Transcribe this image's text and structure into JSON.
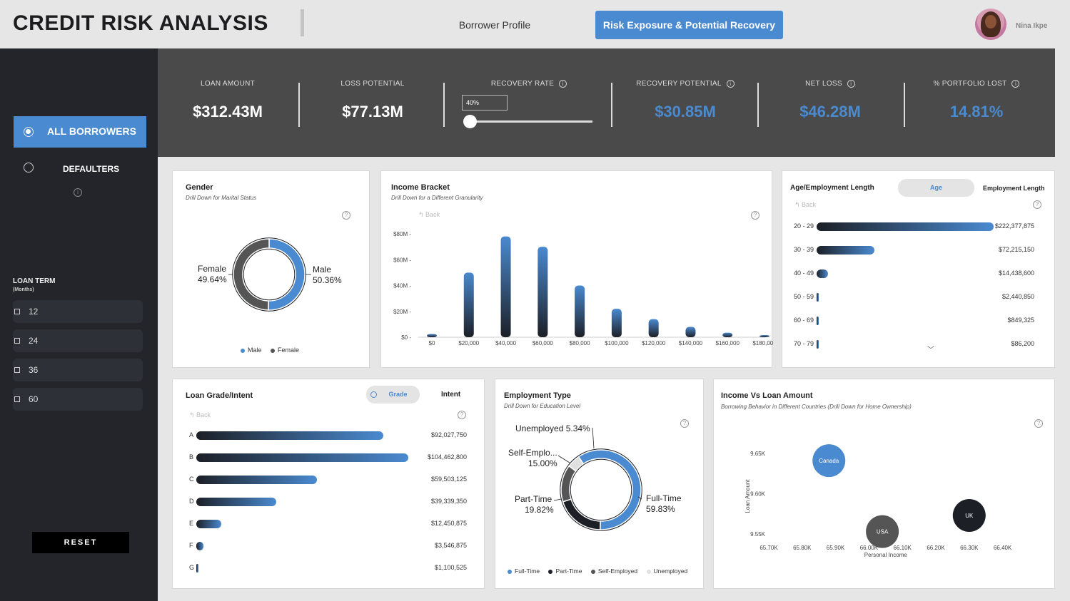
{
  "header": {
    "title": "CREDIT RISK ANALYSIS",
    "tabs": [
      "Borrower Profile",
      "Risk Exposure & Potential Recovery"
    ],
    "user_name": "Nina Ikpe"
  },
  "sidebar": {
    "borrower_filter": [
      "ALL BORROWERS",
      "DEFAULTERS"
    ],
    "loan_term_title": "LOAN TERM",
    "loan_term_sub": "(Months)",
    "terms": [
      "12",
      "24",
      "36",
      "60"
    ],
    "reset_label": "RESET"
  },
  "kpis": {
    "loan_amount": {
      "label": "LOAN AMOUNT",
      "value": "$312.43M"
    },
    "loss_potential": {
      "label": "LOSS POTENTIAL",
      "value": "$77.13M"
    },
    "recovery_rate": {
      "label": "RECOVERY RATE",
      "value": "40%",
      "slider_fraction": 0.0
    },
    "recovery_potential": {
      "label": "RECOVERY POTENTIAL",
      "value": "$30.85M"
    },
    "net_loss": {
      "label": "NET LOSS",
      "value": "$46.28M"
    },
    "portfolio_lost": {
      "label": "% PORTFOLIO LOST",
      "value": "14.81%"
    }
  },
  "colors": {
    "accent": "#4a8ad0",
    "dark": "#1c1f26",
    "panel": "#4a4a4a",
    "sidebar": "#23252b"
  },
  "gender": {
    "title": "Gender",
    "subtitle": "Drill Down for Marital Status",
    "male_label": "Male",
    "male_pct": "50.36%",
    "female_label": "Female",
    "female_pct": "49.64%",
    "legend": [
      "Male",
      "Female"
    ]
  },
  "income": {
    "title": "Income Bracket",
    "subtitle": "Drill Down for a Different Granularity",
    "back_label": "Back"
  },
  "age": {
    "title": "Age/Employment Length",
    "toggle": [
      "Age",
      "Employment Length"
    ],
    "back_label": "Back",
    "rows": [
      {
        "label": "20 - 29",
        "value": "$222,377,875"
      },
      {
        "label": "30 - 39",
        "value": "$72,215,150"
      },
      {
        "label": "40 - 49",
        "value": "$14,438,600"
      },
      {
        "label": "50 - 59",
        "value": "$2,440,850"
      },
      {
        "label": "60 - 69",
        "value": "$849,325"
      },
      {
        "label": "70 - 79",
        "value": "$86,200"
      }
    ]
  },
  "grade": {
    "title": "Loan Grade/Intent",
    "toggle": [
      "Grade",
      "Intent"
    ],
    "back_label": "Back",
    "rows": [
      {
        "label": "A",
        "value": "$92,027,750"
      },
      {
        "label": "B",
        "value": "$104,462,800"
      },
      {
        "label": "C",
        "value": "$59,503,125"
      },
      {
        "label": "D",
        "value": "$39,339,350"
      },
      {
        "label": "E",
        "value": "$12,450,875"
      },
      {
        "label": "F",
        "value": "$3,546,875"
      },
      {
        "label": "G",
        "value": "$1,100,525"
      }
    ]
  },
  "employment": {
    "title": "Employment Type",
    "subtitle": "Drill Down for Education Level",
    "labels": {
      "unemployed": "Unemployed 5.34%",
      "self_name": "Self-Emplo...",
      "self_pct": "15.00%",
      "part_name": "Part-Time",
      "part_pct": "19.82%",
      "full_name": "Full-Time",
      "full_pct": "59.83%"
    },
    "legend": [
      "Full-Time",
      "Part-Time",
      "Self-Employed",
      "Unemployed"
    ]
  },
  "scatter": {
    "title": "Income Vs Loan Amount",
    "subtitle": "Borrowing Behavior in Different Countries (Drill Down for Home Ownership)"
  },
  "chart_data": [
    {
      "type": "pie",
      "title": "Gender",
      "categories": [
        "Male",
        "Female"
      ],
      "values": [
        50.36,
        49.64
      ],
      "colors": [
        "#4a8ad0",
        "#555555"
      ]
    },
    {
      "type": "bar",
      "title": "Income Bracket",
      "categories": [
        "$0",
        "$20,000",
        "$40,000",
        "$60,000",
        "$80,000",
        "$100,000",
        "$120,000",
        "$140,000",
        "$160,000",
        "$180,000"
      ],
      "values": [
        2.5,
        50,
        78,
        70,
        40,
        22,
        14,
        8,
        3.5,
        1.5
      ],
      "ylim": [
        0,
        80
      ],
      "yticks": [
        "$0",
        "$20M",
        "$40M",
        "$60M",
        "$80M"
      ]
    },
    {
      "type": "bar",
      "title": "Age/Employment Length",
      "categories": [
        "20 - 29",
        "30 - 39",
        "40 - 49",
        "50 - 59",
        "60 - 69",
        "70 - 79"
      ],
      "values": [
        222377875,
        72215150,
        14438600,
        2440850,
        849325,
        86200
      ]
    },
    {
      "type": "bar",
      "title": "Loan Grade/Intent",
      "categories": [
        "A",
        "B",
        "C",
        "D",
        "E",
        "F",
        "G"
      ],
      "values": [
        92027750,
        104462800,
        59503125,
        39339350,
        12450875,
        3546875,
        1100525
      ]
    },
    {
      "type": "pie",
      "title": "Employment Type",
      "categories": [
        "Full-Time",
        "Part-Time",
        "Self-Employed",
        "Unemployed"
      ],
      "values": [
        59.83,
        19.82,
        15.0,
        5.34
      ],
      "colors": [
        "#4a8ad0",
        "#1c1f26",
        "#555555",
        "#e0e0e0"
      ]
    },
    {
      "type": "scatter",
      "title": "Income Vs Loan Amount",
      "xlabel": "Personal Income",
      "ylabel": "Loan Amount",
      "xticks": [
        "65.70K",
        "65.80K",
        "65.90K",
        "66.00K",
        "66.10K",
        "66.20K",
        "66.30K",
        "66.40K"
      ],
      "yticks": [
        "9.55K",
        "9.60K",
        "9.65K"
      ],
      "points": [
        {
          "label": "Canada",
          "x": 65.88,
          "y": 9.641,
          "color": "#4a8ad0"
        },
        {
          "label": "USA",
          "x": 66.04,
          "y": 9.553,
          "color": "#555555"
        },
        {
          "label": "UK",
          "x": 66.3,
          "y": 9.573,
          "color": "#1c1f26"
        }
      ]
    }
  ]
}
